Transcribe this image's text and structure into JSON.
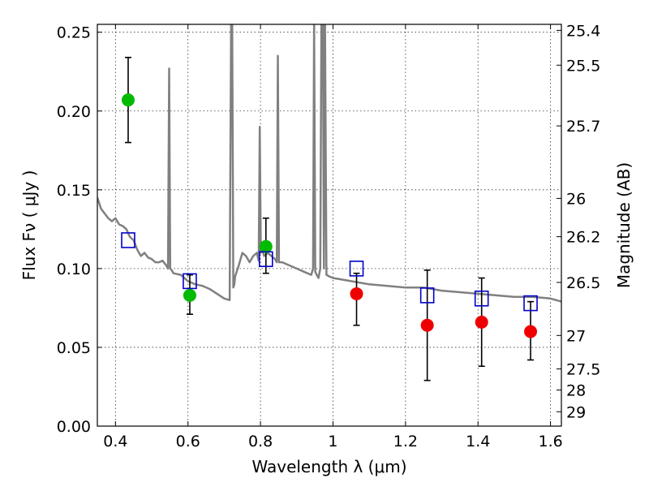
{
  "chart_data": {
    "type": "scatter",
    "title": "",
    "xlabel": "Wavelength  λ (μm)",
    "ylabel": "Flux  Fν  ( μJy )",
    "y2label": "Magnitude (AB)",
    "xlim": [
      0.35,
      1.63
    ],
    "ylim": [
      0.0,
      0.255
    ],
    "grid": true,
    "x_ticks": [
      {
        "value": 0.4,
        "label": "0.4"
      },
      {
        "value": 0.6,
        "label": "0.6"
      },
      {
        "value": 0.8,
        "label": "0.8"
      },
      {
        "value": 1.0,
        "label": "1"
      },
      {
        "value": 1.2,
        "label": "1.2"
      },
      {
        "value": 1.4,
        "label": "1.4"
      },
      {
        "value": 1.6,
        "label": "1.6"
      }
    ],
    "y_ticks": [
      {
        "value": 0.0,
        "label": "0.00"
      },
      {
        "value": 0.05,
        "label": "0.05"
      },
      {
        "value": 0.1,
        "label": "0.10"
      },
      {
        "value": 0.15,
        "label": "0.15"
      },
      {
        "value": 0.2,
        "label": "0.20"
      },
      {
        "value": 0.25,
        "label": "0.25"
      }
    ],
    "y2_ticks": [
      {
        "value": 25.4,
        "label": "25.4"
      },
      {
        "value": 25.5,
        "label": "25.5"
      },
      {
        "value": 25.7,
        "label": "25.7"
      },
      {
        "value": 26,
        "label": "26"
      },
      {
        "value": 26.2,
        "label": "26.2"
      },
      {
        "value": 26.5,
        "label": "26.5"
      },
      {
        "value": 27,
        "label": "27"
      },
      {
        "value": 27.5,
        "label": "27.5"
      },
      {
        "value": 28,
        "label": "28"
      },
      {
        "value": 29,
        "label": "29"
      }
    ],
    "series": [
      {
        "kind": "line",
        "color": "#808080",
        "x": [
          0.35,
          0.36,
          0.37,
          0.38,
          0.39,
          0.4,
          0.41,
          0.42,
          0.43,
          0.44,
          0.45,
          0.46,
          0.47,
          0.48,
          0.49,
          0.5,
          0.51,
          0.52,
          0.53,
          0.54,
          0.545,
          0.548,
          0.551,
          0.555,
          0.56,
          0.58,
          0.6,
          0.62,
          0.64,
          0.66,
          0.68,
          0.7,
          0.715,
          0.719,
          0.722,
          0.725,
          0.728,
          0.73,
          0.74,
          0.75,
          0.76,
          0.77,
          0.78,
          0.79,
          0.795,
          0.798,
          0.801,
          0.805,
          0.81,
          0.82,
          0.83,
          0.84,
          0.845,
          0.848,
          0.851,
          0.86,
          0.88,
          0.9,
          0.92,
          0.94,
          0.945,
          0.948,
          0.951,
          0.955,
          0.96,
          0.965,
          0.968,
          0.972,
          0.975,
          0.978,
          0.982,
          0.99,
          1.0,
          1.05,
          1.1,
          1.15,
          1.2,
          1.25,
          1.3,
          1.35,
          1.4,
          1.45,
          1.5,
          1.55,
          1.6,
          1.63
        ],
        "y": [
          0.145,
          0.138,
          0.135,
          0.132,
          0.13,
          0.132,
          0.128,
          0.127,
          0.125,
          0.12,
          0.118,
          0.112,
          0.108,
          0.11,
          0.107,
          0.106,
          0.104,
          0.104,
          0.105,
          0.102,
          0.1,
          0.227,
          0.1,
          0.099,
          0.097,
          0.096,
          0.092,
          0.09,
          0.089,
          0.087,
          0.084,
          0.081,
          0.08,
          0.257,
          0.257,
          0.088,
          0.09,
          0.095,
          0.102,
          0.11,
          0.108,
          0.104,
          0.108,
          0.11,
          0.105,
          0.19,
          0.11,
          0.112,
          0.108,
          0.11,
          0.108,
          0.106,
          0.104,
          0.235,
          0.104,
          0.104,
          0.102,
          0.1,
          0.098,
          0.096,
          0.1,
          0.257,
          0.098,
          0.096,
          0.094,
          0.1,
          0.257,
          0.257,
          0.1,
          0.257,
          0.096,
          0.095,
          0.094,
          0.092,
          0.09,
          0.089,
          0.088,
          0.088,
          0.086,
          0.085,
          0.084,
          0.083,
          0.082,
          0.082,
          0.081,
          0.079
        ]
      },
      {
        "kind": "points",
        "color": "#00bb00",
        "marker": "circle",
        "x": [
          0.435,
          0.605,
          0.815
        ],
        "y": [
          0.207,
          0.083,
          0.114
        ],
        "yerr_low": [
          0.18,
          0.071,
          0.097
        ],
        "yerr_high": [
          0.234,
          0.096,
          0.132
        ]
      },
      {
        "kind": "points",
        "color": "#ee0000",
        "marker": "circle",
        "x": [
          1.065,
          1.26,
          1.41,
          1.545
        ],
        "y": [
          0.084,
          0.064,
          0.066,
          0.06
        ],
        "yerr_low": [
          0.064,
          0.029,
          0.038,
          0.042
        ],
        "yerr_high": [
          0.097,
          0.099,
          0.094,
          0.079
        ]
      },
      {
        "kind": "points",
        "color": "#0000cc",
        "marker": "open-square",
        "x": [
          0.435,
          0.605,
          0.815,
          1.065,
          1.26,
          1.41,
          1.545
        ],
        "y": [
          0.118,
          0.092,
          0.106,
          0.1,
          0.083,
          0.081,
          0.078
        ]
      }
    ]
  }
}
